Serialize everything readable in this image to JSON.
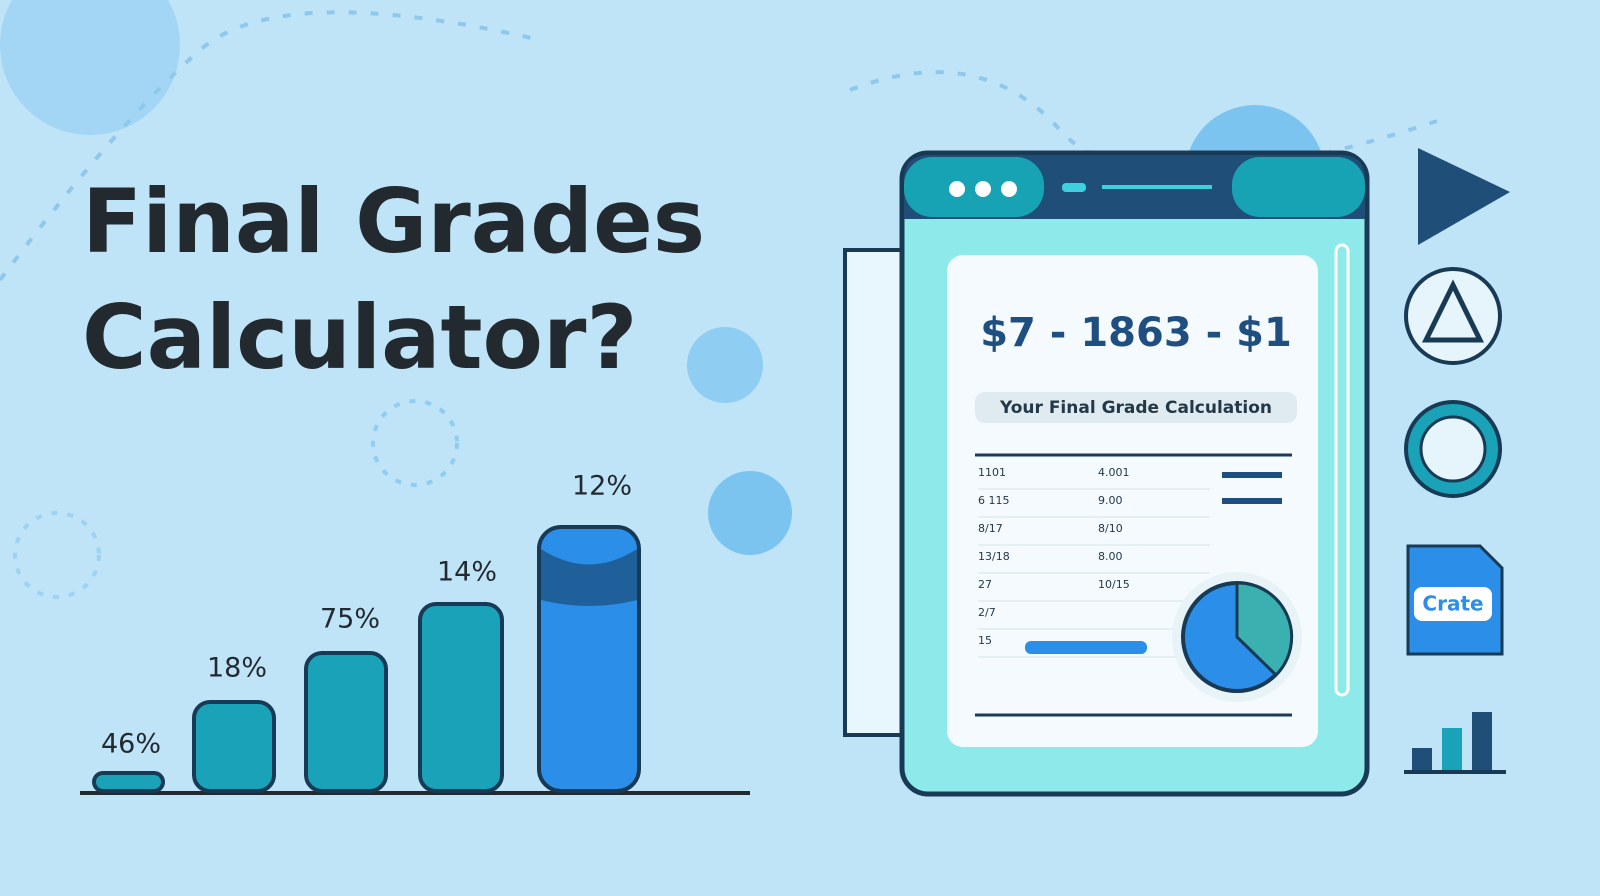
{
  "header": {
    "title_line1": "Final Grades",
    "title_line2": "Calculator?"
  },
  "bar_labels": [
    "46%",
    "18%",
    "75%",
    "14%",
    "12%"
  ],
  "window": {
    "heading": "$7 - 1863 - $1",
    "subheading": "Your Final Grade Calculation",
    "rows": [
      [
        "1101",
        "4.001"
      ],
      [
        "6 115",
        "9.00"
      ],
      [
        "8/17",
        "8/10"
      ],
      [
        "13/18",
        "8.00"
      ],
      [
        "27",
        "10/15"
      ],
      [
        "2/7",
        ""
      ],
      [
        "15",
        ""
      ]
    ]
  },
  "icons": {
    "file_label": "Crate"
  }
}
